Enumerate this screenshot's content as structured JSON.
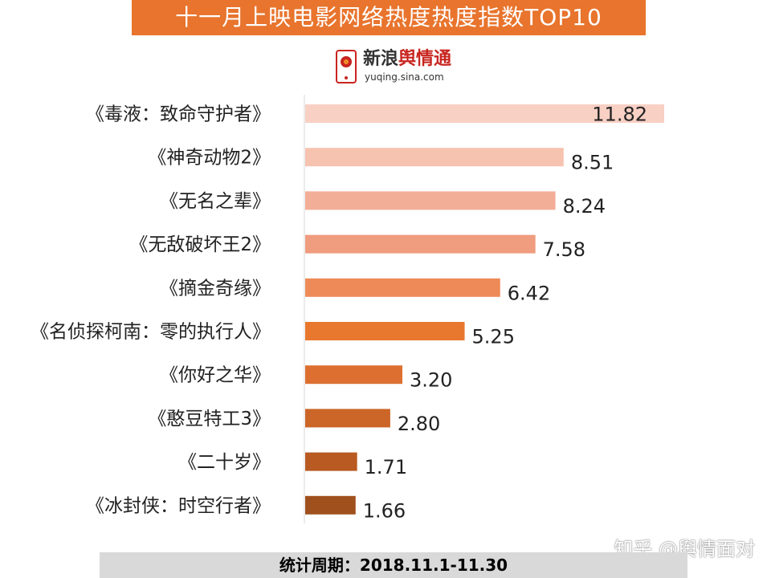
{
  "title": "十一月上映电影网络热度热度指数TOP10",
  "logo": {
    "name_part1": "新浪",
    "name_part2": "舆情通",
    "url": "yuqing.sina.com"
  },
  "footer": "统计周期：2018.11.1-11.30",
  "watermark": "知乎 @舆情面对",
  "chart_data": {
    "type": "bar",
    "orientation": "horizontal",
    "title": "十一月上映电影网络热度热度指数TOP10",
    "categories": [
      "《毒液：致命守护者》",
      "《神奇动物2》",
      "《无名之辈》",
      "《无敌破坏王2》",
      "《摘金奇缘》",
      "《名侦探柯南：零的执行人》",
      "《你好之华》",
      "《憨豆特工3》",
      "《二十岁》",
      "《冰封侠：时空行者》"
    ],
    "values": [
      11.82,
      8.51,
      8.24,
      7.58,
      6.42,
      5.25,
      3.2,
      2.8,
      1.71,
      1.66
    ],
    "value_labels": [
      "11.82",
      "8.51",
      "8.24",
      "7.58",
      "6.42",
      "5.25",
      "3.20",
      "2.80",
      "1.71",
      "1.66"
    ],
    "colors": [
      "#f8d0c4",
      "#f6c3b0",
      "#f3ae97",
      "#f09c7e",
      "#ee8a58",
      "#e8782e",
      "#dd7030",
      "#cc6528",
      "#b85a22",
      "#a0501c"
    ],
    "xlabel": "",
    "ylabel": "",
    "xlim": [
      0,
      11.82
    ],
    "grid": false,
    "legend": "none"
  }
}
